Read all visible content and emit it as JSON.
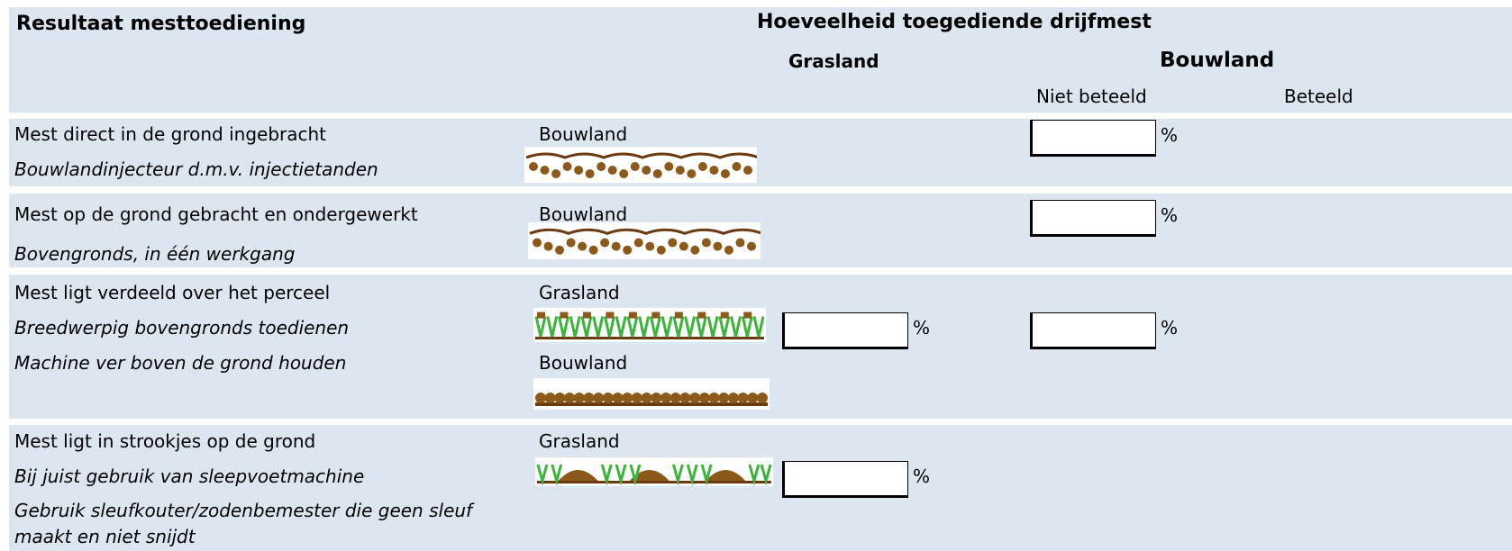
{
  "header": {
    "title": "Resultaat mesttoediening",
    "group_title": "Hoeveelheid toegediende drijfmest",
    "grasland": "Grasland",
    "bouwland": "Bouwland",
    "niet_beteeld": "Niet beteeld",
    "beteeld": "Beteeld"
  },
  "rows": [
    {
      "lines": [
        "Mest direct in de grond ingebracht",
        "Bouwlandinjecteur d.m.v. injectietanden"
      ],
      "images": [
        {
          "label": "Bouwland"
        }
      ],
      "bouwland_niet_beteeld": {
        "unit": "%"
      }
    },
    {
      "lines": [
        "Mest op de grond gebracht en ondergewerkt",
        "Bovengronds, in één werkgang"
      ],
      "images": [
        {
          "label": "Bouwland"
        }
      ],
      "bouwland_niet_beteeld": {
        "unit": "%"
      }
    },
    {
      "lines": [
        "Mest ligt verdeeld over het perceel",
        "Breedwerpig bovengronds toedienen",
        "Machine ver boven de grond houden"
      ],
      "images": [
        {
          "label": "Grasland"
        },
        {
          "label": "Bouwland"
        }
      ],
      "grasland": {
        "unit": "%"
      },
      "bouwland_niet_beteeld": {
        "unit": "%"
      }
    },
    {
      "lines": [
        "Mest ligt in strookjes op de grond",
        "Bij juist gebruik van sleepvoetmachine",
        "Gebruik sleufkouter/zodenbemester die geen sleuf",
        "maakt en niet snijdt"
      ],
      "images": [
        {
          "label": "Grasland"
        }
      ],
      "grasland": {
        "unit": "%"
      }
    }
  ]
}
